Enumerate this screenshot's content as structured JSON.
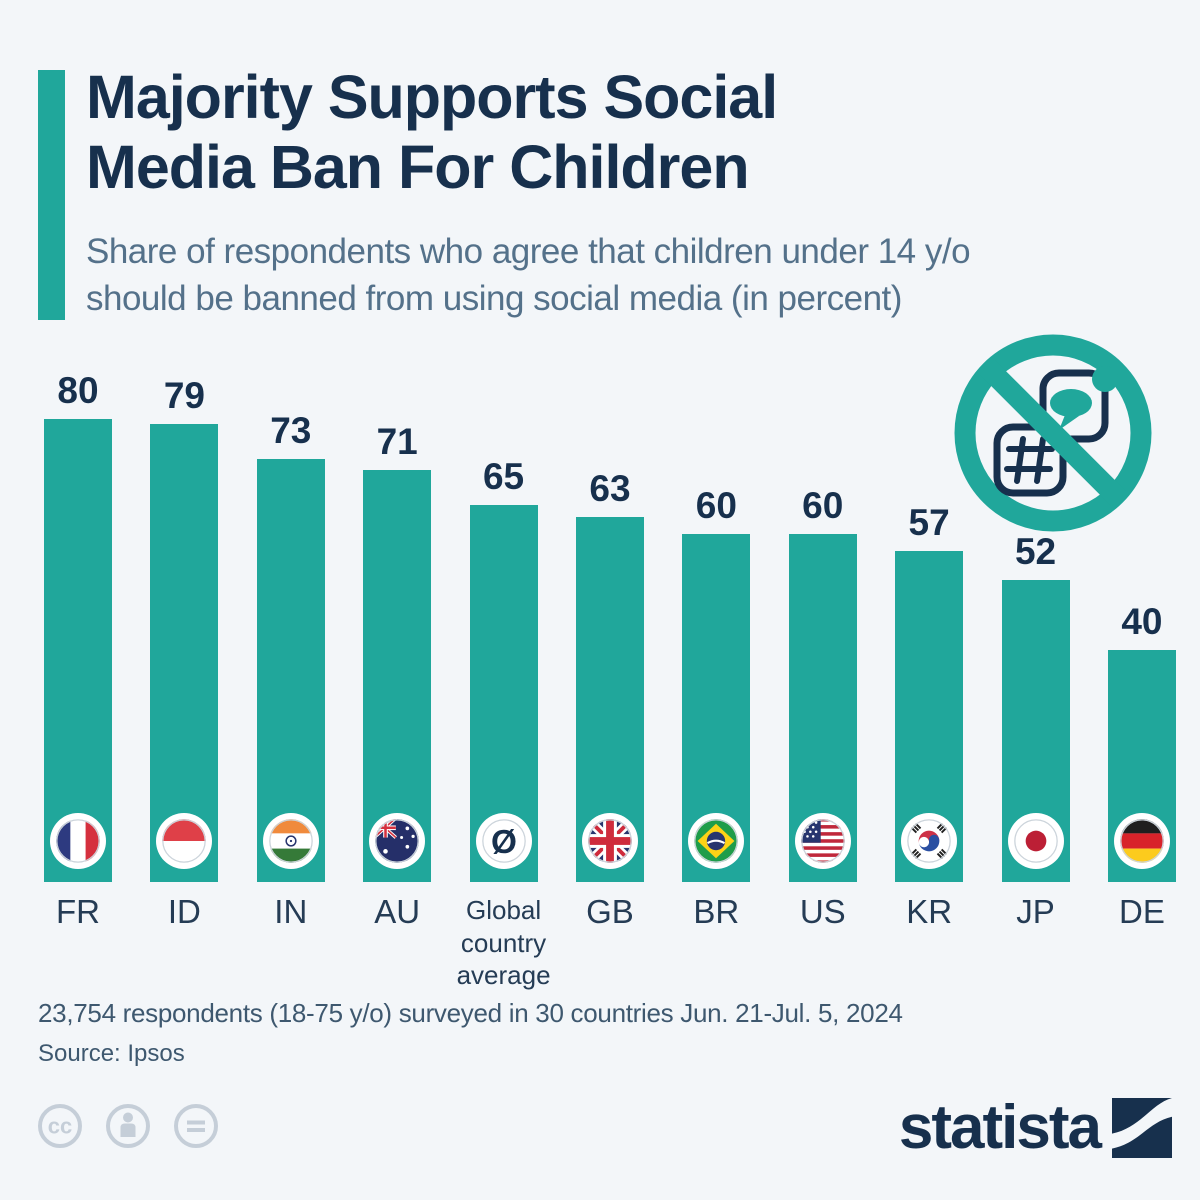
{
  "header": {
    "title_lines": [
      "Majority Supports Social",
      "Media Ban For Children"
    ],
    "subtitle_lines": [
      "Share of respondents who agree that children under 14 y/o",
      "should be banned from using social media (in percent)"
    ]
  },
  "chart_data": {
    "type": "bar",
    "title": "Majority Supports Social Media Ban For Children",
    "subtitle": "Share of respondents who agree that children under 14 y/o should be banned from using social media (in percent)",
    "unit": "percent",
    "ylim": [
      0,
      80
    ],
    "grid": false,
    "legend": "none",
    "categories": [
      "FR",
      "ID",
      "IN",
      "AU",
      "Global country average",
      "GB",
      "BR",
      "US",
      "KR",
      "JP",
      "DE"
    ],
    "values": [
      80,
      79,
      73,
      71,
      65,
      63,
      60,
      60,
      57,
      52,
      40
    ],
    "flags": [
      "fr",
      "id",
      "in",
      "au",
      "global",
      "gb",
      "br",
      "us",
      "kr",
      "jp",
      "de"
    ],
    "bar_color": "#20a79b",
    "value_label_color": "#17304d"
  },
  "icons": {
    "ban": "no-social-media-icon",
    "global_average": "global-average-slashed-o-icon",
    "license": [
      "cc-icon",
      "cc-by-person-icon",
      "cc-nd-equals-icon"
    ]
  },
  "colors": {
    "background": "#f3f6f9",
    "accent_teal": "#20a79b",
    "title_navy": "#17304d",
    "subtitle_slate": "#54718a",
    "footer_text": "#3e586f",
    "license_gray": "#c5ced8"
  },
  "footer": {
    "note": "23,754 respondents (18-75 y/o) surveyed in 30 countries Jun. 21-Jul. 5, 2024",
    "source": "Source: Ipsos",
    "brand": "statista"
  }
}
